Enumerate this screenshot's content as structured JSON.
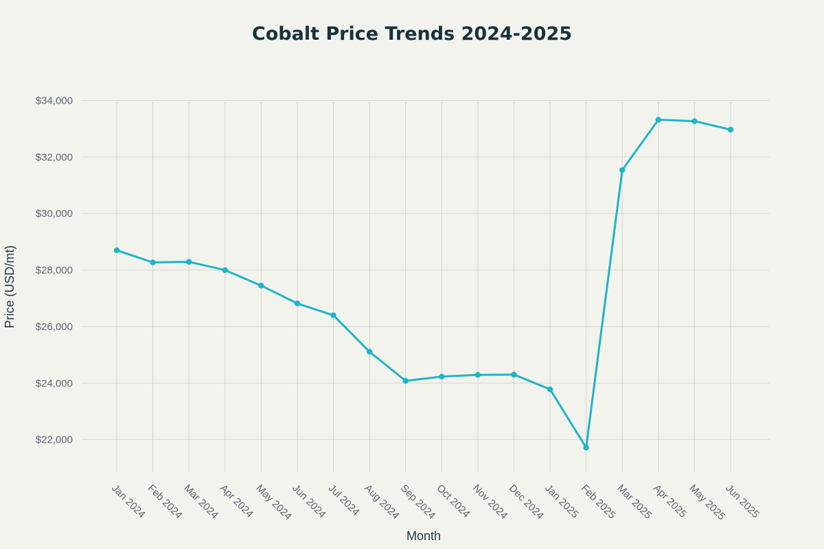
{
  "chart_data": {
    "type": "line",
    "title": "Cobalt Price Trends 2024-2025",
    "xlabel": "Month",
    "ylabel": "Price (USD/mt)",
    "categories": [
      "Jan 2024",
      "Feb 2024",
      "Mar 2024",
      "Apr 2024",
      "May 2024",
      "Jun 2024",
      "Jul 2024",
      "Aug 2024",
      "Sep 2024",
      "Oct 2024",
      "Nov 2024",
      "Dec 2024",
      "Jan 2025",
      "Feb 2025",
      "Mar 2025",
      "Apr 2025",
      "May 2025",
      "Jun 2025"
    ],
    "series": [
      {
        "values": [
          28700,
          28270,
          28290,
          28000,
          27450,
          26820,
          26400,
          25110,
          24080,
          24230,
          24290,
          24300,
          23780,
          21720,
          31540,
          33320,
          33270,
          32970
        ]
      }
    ],
    "ylim": [
      20850,
      34400
    ],
    "yticks": [
      22000,
      24000,
      26000,
      28000,
      30000,
      32000,
      34000
    ],
    "ytick_labels": [
      "$22,000",
      "$24,000",
      "$26,000",
      "$28,000",
      "$30,000",
      "$32,000",
      "$34,000"
    ],
    "grid": true,
    "colors": {
      "line": "#1fb4c8",
      "background": "#f3f3ee",
      "grid": "#d6d3cd",
      "title": "#16333d"
    }
  }
}
